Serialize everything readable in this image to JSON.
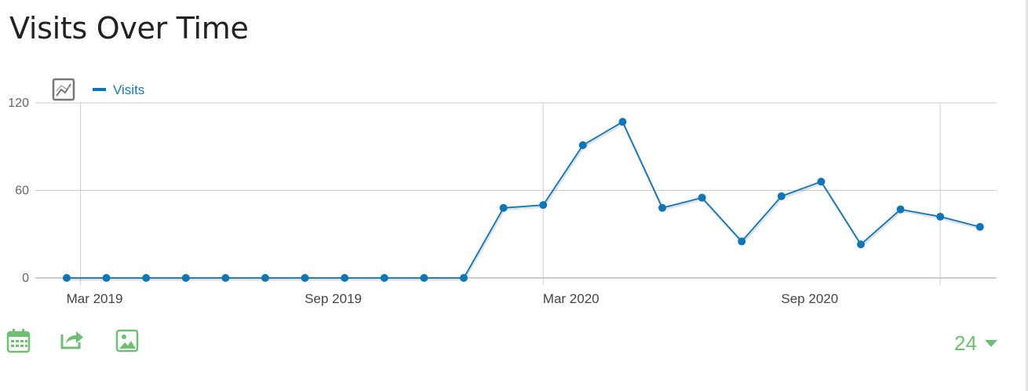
{
  "page": {
    "title": "Visits Over Time"
  },
  "colors": {
    "series": "#0c76b8",
    "grid": "#cccccc",
    "accent": "#6fbf73",
    "icon_gray": "#777777"
  },
  "chart_data": {
    "type": "line",
    "title": "Visits Over Time",
    "xlabel": "",
    "ylabel": "",
    "x": [
      "2019-02",
      "2019-03",
      "2019-04",
      "2019-05",
      "2019-06",
      "2019-07",
      "2019-08",
      "2019-09",
      "2019-10",
      "2019-11",
      "2019-12",
      "2020-01",
      "2020-02",
      "2020-03",
      "2020-04",
      "2020-05",
      "2020-06",
      "2020-07",
      "2020-08",
      "2020-09",
      "2020-10",
      "2020-11",
      "2020-12",
      "2021-01"
    ],
    "x_tick_labels": [
      {
        "x": "2019-03",
        "label": "Mar 2019"
      },
      {
        "x": "2019-09",
        "label": "Sep 2019"
      },
      {
        "x": "2020-03",
        "label": "Mar 2020"
      },
      {
        "x": "2020-09",
        "label": "Sep 2020"
      }
    ],
    "series": [
      {
        "name": "Visits",
        "color": "#0c76b8",
        "values": [
          0,
          0,
          0,
          0,
          0,
          0,
          0,
          0,
          0,
          0,
          0,
          48,
          50,
          91,
          107,
          48,
          55,
          25,
          56,
          66,
          23,
          47,
          42,
          35
        ]
      }
    ],
    "ylim": [
      0,
      120
    ],
    "y_ticks": [
      0,
      60,
      120
    ],
    "grid": true,
    "vertical_grid_at": [
      "2019-03",
      "2020-02",
      "2020-12"
    ],
    "legend": {
      "position": "top-left",
      "entries": [
        "Visits"
      ]
    }
  },
  "footer": {
    "period_value": "24",
    "icons": [
      "calendar-icon",
      "export-icon",
      "image-icon"
    ]
  }
}
